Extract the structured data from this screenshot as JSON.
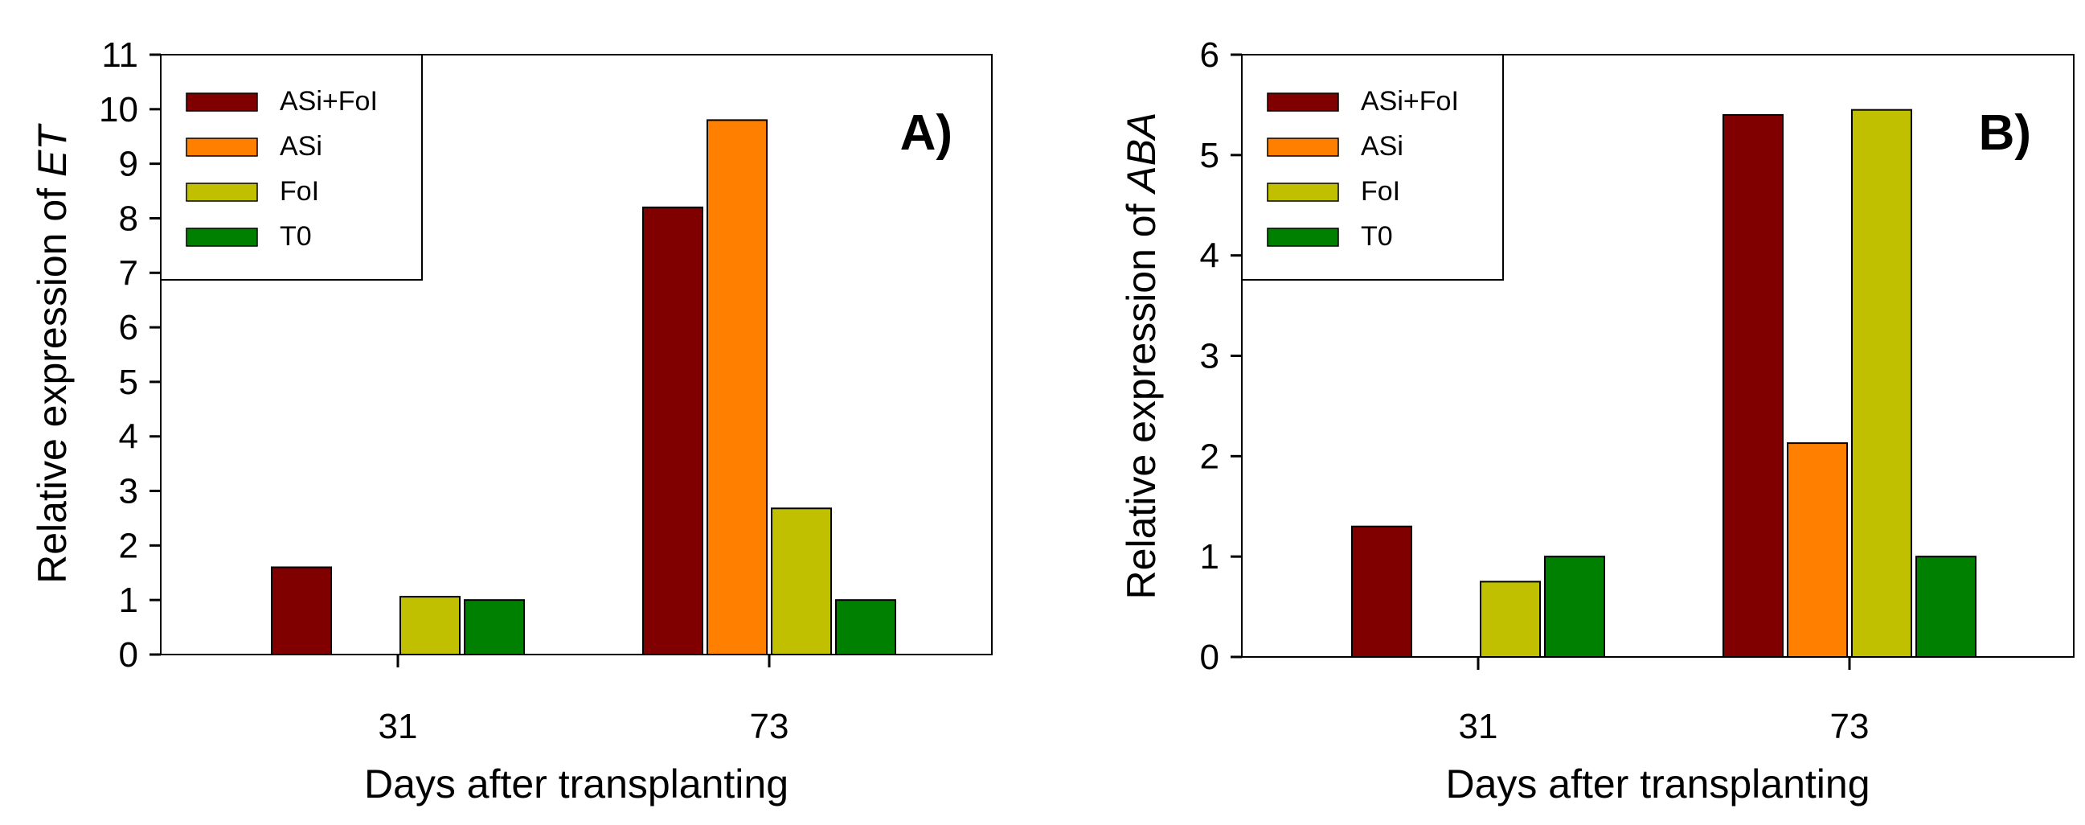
{
  "chart_data": [
    {
      "type": "bar",
      "panel_label": "A)",
      "xlabel": "Days after transplanting",
      "ylabel_prefix": "Relative expression of ",
      "ylabel_gene": "ET",
      "ylim": [
        0,
        11
      ],
      "yticks": [
        0,
        1,
        2,
        3,
        4,
        5,
        6,
        7,
        8,
        9,
        10,
        11
      ],
      "categories": [
        "31",
        "73"
      ],
      "legend_position": "top-left",
      "series": [
        {
          "name": "ASi+FoI",
          "color": "#800000",
          "values": [
            1.6,
            8.2
          ]
        },
        {
          "name": "ASi",
          "color": "#ff8000",
          "values": [
            0,
            9.8
          ]
        },
        {
          "name": "FoI",
          "color": "#c0c000",
          "values": [
            1.06,
            2.68
          ]
        },
        {
          "name": "T0",
          "color": "#008000",
          "values": [
            1.0,
            1.0
          ]
        }
      ]
    },
    {
      "type": "bar",
      "panel_label": "B)",
      "xlabel": "Days after transplanting",
      "ylabel_prefix": "Relative expression of ",
      "ylabel_gene": "ABA",
      "ylim": [
        0,
        6
      ],
      "yticks": [
        0,
        1,
        2,
        3,
        4,
        5,
        6
      ],
      "categories": [
        "31",
        "73"
      ],
      "legend_position": "top-left",
      "series": [
        {
          "name": "ASi+FoI",
          "color": "#800000",
          "values": [
            1.3,
            5.4
          ]
        },
        {
          "name": "ASi",
          "color": "#ff8000",
          "values": [
            0,
            2.13
          ]
        },
        {
          "name": "FoI",
          "color": "#c0c000",
          "values": [
            0.75,
            5.45
          ]
        },
        {
          "name": "T0",
          "color": "#008000",
          "values": [
            1.0,
            1.0
          ]
        }
      ]
    }
  ]
}
